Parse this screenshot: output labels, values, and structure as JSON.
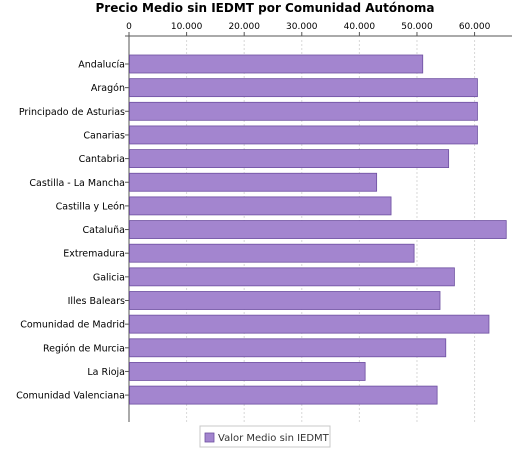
{
  "chart_data": {
    "type": "bar",
    "orientation": "horizontal",
    "title": "Precio Medio sin IEDMT por Comunidad Autónoma",
    "xlabel": "",
    "ylabel": "",
    "categories": [
      "Andalucía",
      "Aragón",
      "Principado de Asturias",
      "Canarias",
      "Cantabria",
      "Castilla - La Mancha",
      "Castilla y León",
      "Cataluña",
      "Extremadura",
      "Galicia",
      "Illes Balears",
      "Comunidad de Madrid",
      "Región de Murcia",
      "La Rioja",
      "Comunidad Valenciana"
    ],
    "series": [
      {
        "name": "Valor Medio sin IEDMT",
        "values": [
          51000,
          60500,
          60500,
          60500,
          55500,
          43000,
          45500,
          65500,
          49500,
          56500,
          54000,
          62500,
          55000,
          41000,
          53500
        ]
      }
    ],
    "xlim": [
      0,
      66500
    ],
    "xticks": [
      0,
      10000,
      20000,
      30000,
      40000,
      50000,
      60000
    ],
    "tick_labels": [
      "0",
      "10.000",
      "20.000",
      "30.000",
      "40.000",
      "50.000",
      "60.000"
    ],
    "axis_position": "top",
    "grid": true,
    "legend_position": "bottom",
    "colors": {
      "bar_fill": "#a385cf",
      "bar_stroke": "#6d4fa0",
      "grid": "#d8d8d8",
      "axis": "#555555",
      "legend_text": "#333333"
    }
  }
}
